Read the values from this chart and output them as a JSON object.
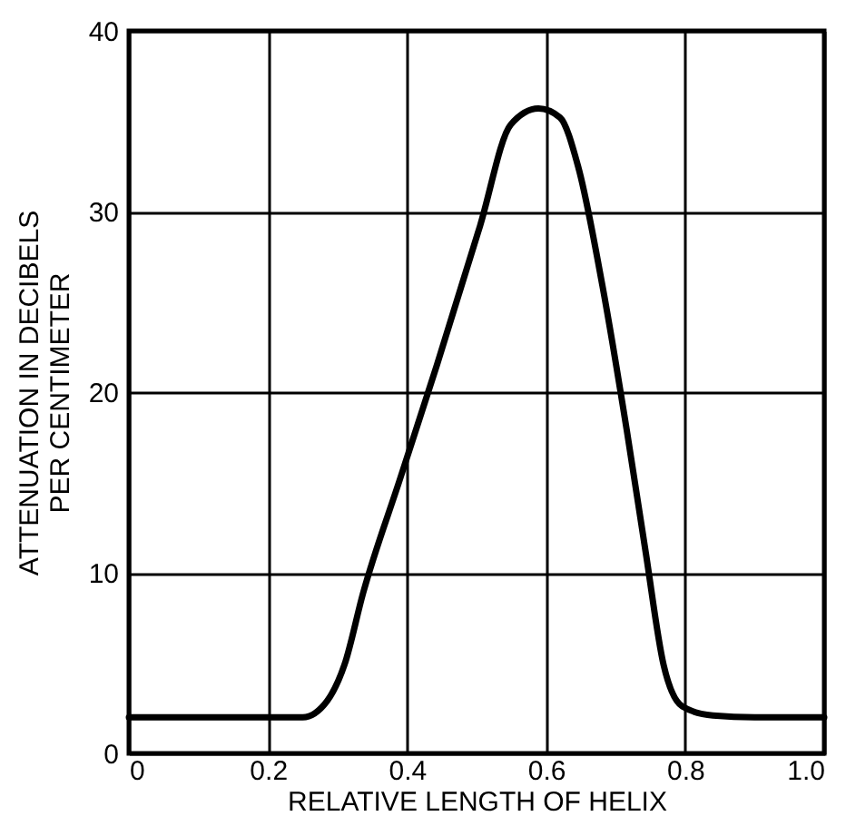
{
  "chart_data": {
    "type": "line",
    "xlabel": "RELATIVE LENGTH OF HELIX",
    "ylabel": [
      "ATTENUATION IN DECIBELS",
      "PER CENTIMETER"
    ],
    "x": [
      0,
      0.1,
      0.2,
      0.25,
      0.285,
      0.31,
      0.337,
      0.39,
      0.443,
      0.505,
      0.549,
      0.589,
      0.62,
      0.646,
      0.681,
      0.716,
      0.743,
      0.769,
      0.796,
      0.84,
      0.9,
      1.0
    ],
    "series": [
      {
        "color": "#000000",
        "values": [
          2,
          2,
          2,
          2,
          2.9,
          4.9,
          8.9,
          15.2,
          21.5,
          29.2,
          34.8,
          35.7,
          35.2,
          32.5,
          25.9,
          17.9,
          11.2,
          4.9,
          2.6,
          2.1,
          2,
          2
        ]
      }
    ],
    "xlim": [
      0,
      1.0
    ],
    "xticks": [
      0,
      0.2,
      0.4,
      0.6,
      0.8,
      {
        "value": 1.0,
        "label": "1.0"
      }
    ],
    "ylim": [
      0,
      40
    ],
    "yticks": [
      0,
      10,
      20,
      30,
      40
    ],
    "grid": true,
    "line_style": "solid",
    "marker": "none"
  }
}
